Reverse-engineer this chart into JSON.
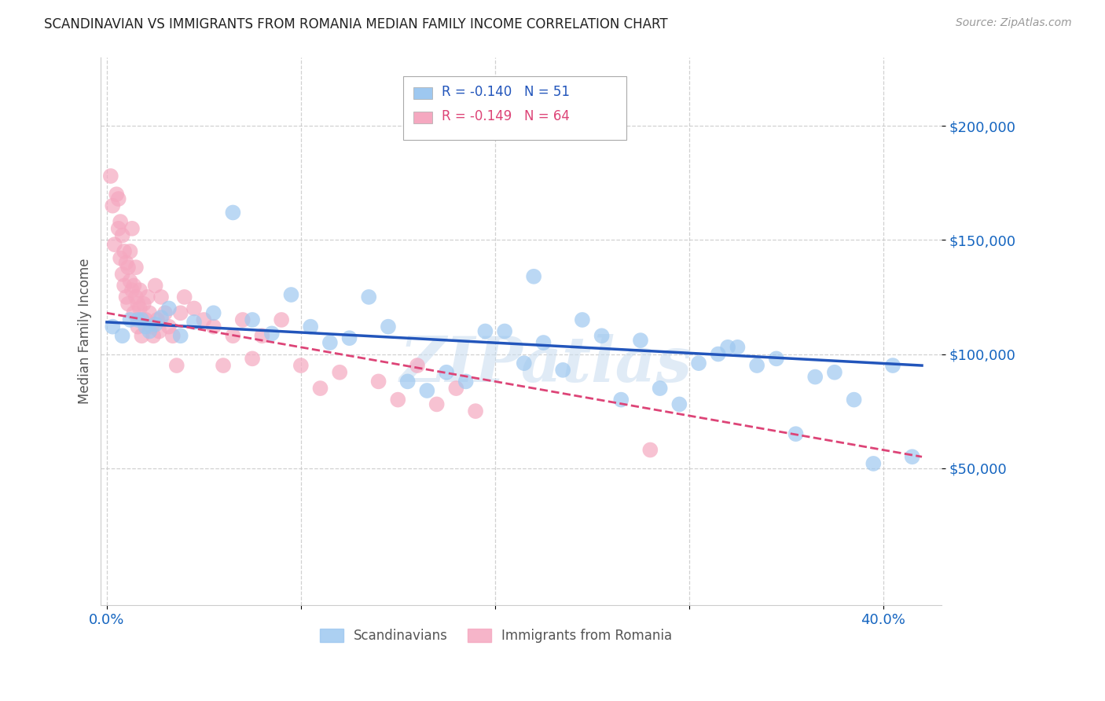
{
  "title": "SCANDINAVIAN VS IMMIGRANTS FROM ROMANIA MEDIAN FAMILY INCOME CORRELATION CHART",
  "source": "Source: ZipAtlas.com",
  "ylabel": "Median Family Income",
  "ytick_labels": [
    "$50,000",
    "$100,000",
    "$150,000",
    "$200,000"
  ],
  "ytick_values": [
    50000,
    100000,
    150000,
    200000
  ],
  "ylim": [
    -10000,
    230000
  ],
  "xlim": [
    -0.003,
    0.43
  ],
  "legend_blue_r": "-0.140",
  "legend_blue_n": "51",
  "legend_pink_r": "-0.149",
  "legend_pink_n": "64",
  "legend_label_blue": "Scandinavians",
  "legend_label_pink": "Immigrants from Romania",
  "watermark": "ZIPatlas",
  "xtick_positions": [
    0.0,
    0.1,
    0.2,
    0.3,
    0.4
  ],
  "xtick_show": [
    "0.0%",
    "",
    "",
    "",
    "40.0%"
  ],
  "blue_scatter_x": [
    0.003,
    0.008,
    0.012,
    0.016,
    0.018,
    0.02,
    0.022,
    0.025,
    0.028,
    0.032,
    0.038,
    0.045,
    0.055,
    0.065,
    0.075,
    0.085,
    0.095,
    0.105,
    0.115,
    0.125,
    0.135,
    0.145,
    0.155,
    0.165,
    0.175,
    0.185,
    0.195,
    0.205,
    0.215,
    0.225,
    0.235,
    0.245,
    0.255,
    0.265,
    0.275,
    0.285,
    0.295,
    0.305,
    0.315,
    0.325,
    0.335,
    0.345,
    0.355,
    0.365,
    0.375,
    0.385,
    0.395,
    0.405,
    0.415,
    0.32,
    0.22
  ],
  "blue_scatter_y": [
    112000,
    108000,
    115000,
    115000,
    115000,
    112000,
    110000,
    113000,
    116000,
    120000,
    108000,
    114000,
    118000,
    162000,
    115000,
    109000,
    126000,
    112000,
    105000,
    107000,
    125000,
    112000,
    88000,
    84000,
    92000,
    88000,
    110000,
    110000,
    96000,
    105000,
    93000,
    115000,
    108000,
    80000,
    106000,
    85000,
    78000,
    96000,
    100000,
    103000,
    95000,
    98000,
    65000,
    90000,
    92000,
    80000,
    52000,
    95000,
    55000,
    103000,
    134000
  ],
  "pink_scatter_x": [
    0.002,
    0.003,
    0.004,
    0.005,
    0.006,
    0.006,
    0.007,
    0.007,
    0.008,
    0.008,
    0.009,
    0.009,
    0.01,
    0.01,
    0.011,
    0.011,
    0.012,
    0.012,
    0.013,
    0.013,
    0.014,
    0.014,
    0.015,
    0.015,
    0.016,
    0.016,
    0.017,
    0.017,
    0.018,
    0.019,
    0.02,
    0.021,
    0.022,
    0.023,
    0.024,
    0.025,
    0.026,
    0.027,
    0.028,
    0.03,
    0.032,
    0.034,
    0.036,
    0.038,
    0.04,
    0.045,
    0.05,
    0.055,
    0.06,
    0.065,
    0.07,
    0.075,
    0.08,
    0.09,
    0.1,
    0.11,
    0.12,
    0.14,
    0.15,
    0.16,
    0.17,
    0.18,
    0.19,
    0.28
  ],
  "pink_scatter_y": [
    178000,
    165000,
    148000,
    170000,
    155000,
    168000,
    158000,
    142000,
    152000,
    135000,
    130000,
    145000,
    140000,
    125000,
    138000,
    122000,
    132000,
    145000,
    128000,
    155000,
    130000,
    118000,
    125000,
    138000,
    122000,
    112000,
    120000,
    128000,
    108000,
    122000,
    115000,
    125000,
    118000,
    112000,
    108000,
    130000,
    115000,
    110000,
    125000,
    118000,
    112000,
    108000,
    95000,
    118000,
    125000,
    120000,
    115000,
    112000,
    95000,
    108000,
    115000,
    98000,
    108000,
    115000,
    95000,
    85000,
    92000,
    88000,
    80000,
    95000,
    78000,
    85000,
    75000,
    58000
  ],
  "blue_line_x": [
    0.0,
    0.42
  ],
  "blue_line_y": [
    114000,
    95000
  ],
  "pink_line_x": [
    0.0,
    0.42
  ],
  "pink_line_y": [
    118000,
    55000
  ],
  "blue_color": "#9EC8F0",
  "pink_color": "#F5A8C0",
  "blue_line_color": "#2255BB",
  "pink_line_color": "#DD4477",
  "background_color": "#FFFFFF",
  "grid_color": "#CCCCCC",
  "title_color": "#222222",
  "axis_label_color": "#555555",
  "ytick_color": "#1565C0",
  "xtick_color": "#1565C0"
}
